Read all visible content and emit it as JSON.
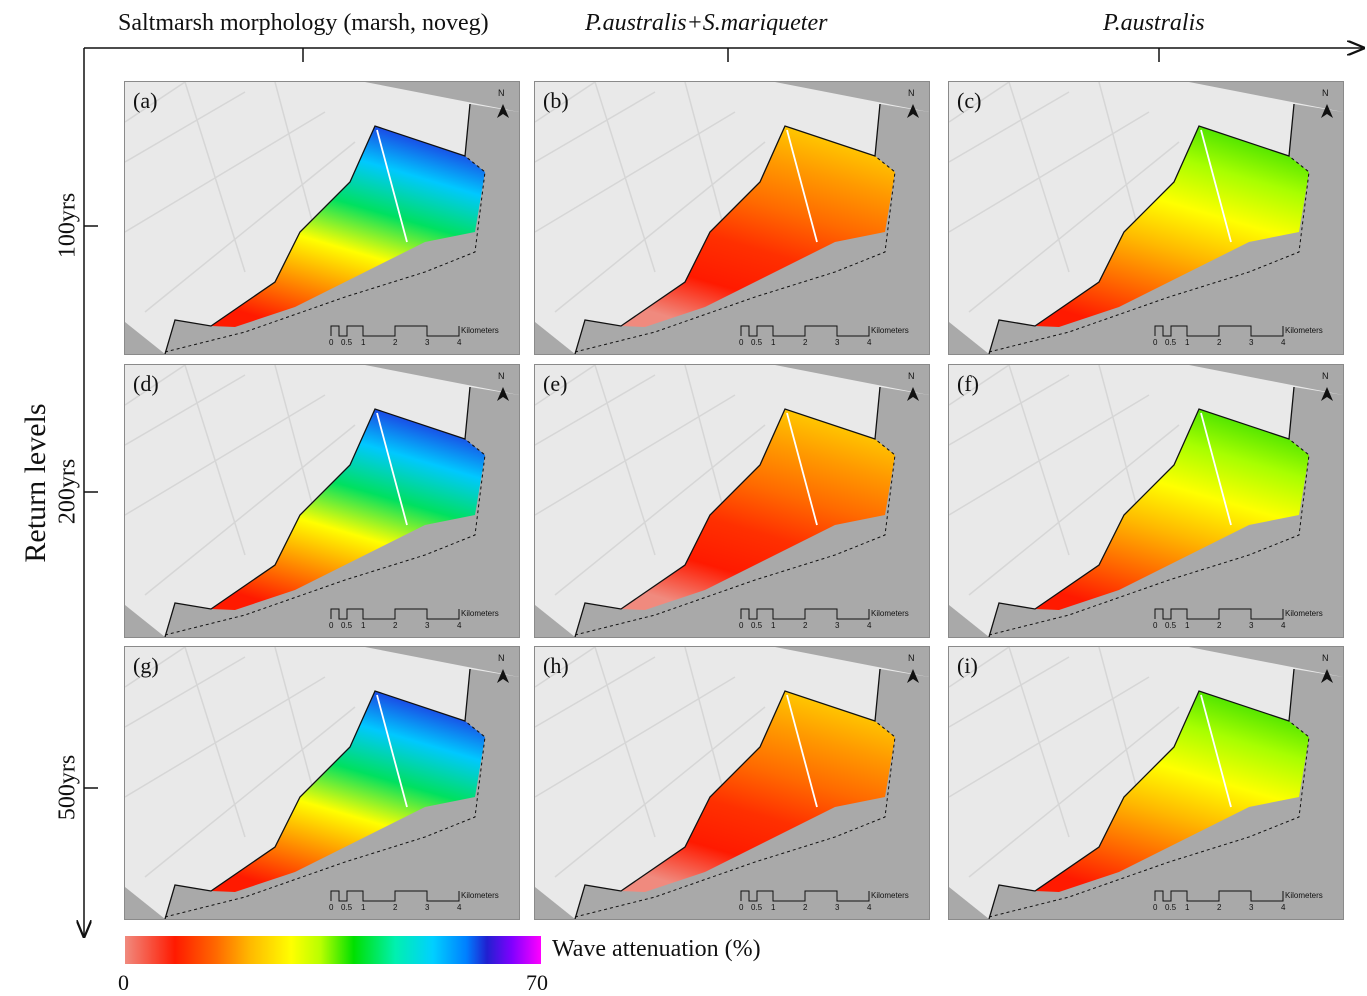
{
  "column_titles": [
    {
      "text": "Saltmarsh morphology (marsh, noveg)",
      "italic": false
    },
    {
      "text": "P.australis+S.mariqueter",
      "italic": true
    },
    {
      "text": "P.australis",
      "italic": true
    }
  ],
  "y_axis_label": "Return levels",
  "row_labels": [
    "100yrs",
    "200yrs",
    "500yrs"
  ],
  "panels": [
    {
      "label": "(a)",
      "scenario": "marsh-noveg"
    },
    {
      "label": "(b)",
      "scenario": "pa-sm"
    },
    {
      "label": "(c)",
      "scenario": "pa"
    },
    {
      "label": "(d)",
      "scenario": "marsh-noveg"
    },
    {
      "label": "(e)",
      "scenario": "pa-sm"
    },
    {
      "label": "(f)",
      "scenario": "pa"
    },
    {
      "label": "(g)",
      "scenario": "marsh-noveg"
    },
    {
      "label": "(h)",
      "scenario": "pa-sm"
    },
    {
      "label": "(i)",
      "scenario": "pa"
    }
  ],
  "scalebar": {
    "ticks": [
      "0",
      "0.5",
      "1",
      "2",
      "3",
      "4"
    ],
    "unit": "Kilometers"
  },
  "north_arrow": "N",
  "colorbar": {
    "title": "Wave attenuation (%)",
    "min": "0",
    "max": "70"
  }
}
